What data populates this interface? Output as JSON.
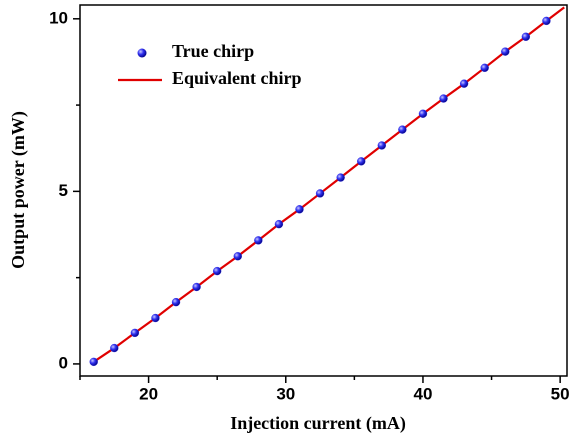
{
  "chart_data": {
    "type": "scatter",
    "xlabel": "Injection current (mA)",
    "ylabel": "Output power (mW)",
    "xlim": [
      15,
      50.5
    ],
    "ylim": [
      -0.35,
      10.4
    ],
    "xticks": [
      20,
      30,
      40,
      50
    ],
    "yticks": [
      0,
      5,
      10
    ],
    "xminorticks": [
      15,
      25,
      35,
      45
    ],
    "yminorticks": [
      2.5,
      7.5
    ],
    "legend": "upper left",
    "series": [
      {
        "name": "True chirp",
        "type": "scatter",
        "color": "#2020e0",
        "x": [
          16,
          17.5,
          19,
          20.5,
          22,
          23.5,
          25,
          26.5,
          28,
          29.5,
          31,
          32.5,
          34,
          35.5,
          37,
          38.5,
          40,
          41.5,
          43,
          44.5,
          46,
          47.5,
          49
        ],
        "values": [
          0.06,
          0.46,
          0.9,
          1.33,
          1.79,
          2.23,
          2.69,
          3.12,
          3.58,
          4.05,
          4.48,
          4.94,
          5.4,
          5.87,
          6.33,
          6.79,
          7.25,
          7.69,
          8.12,
          8.58,
          9.05,
          9.48,
          9.94
        ]
      },
      {
        "name": "Equivalent chirp",
        "type": "line",
        "color": "#e00000",
        "x": [
          16,
          17.5,
          19,
          20.5,
          22,
          23.5,
          25,
          26.5,
          28,
          29.5,
          31,
          32.5,
          34,
          35.5,
          37,
          38.5,
          40,
          41.5,
          43,
          44.5,
          46,
          47.5,
          49,
          50.3
        ],
        "values": [
          0.06,
          0.46,
          0.9,
          1.33,
          1.79,
          2.23,
          2.69,
          3.12,
          3.58,
          4.05,
          4.48,
          4.94,
          5.4,
          5.87,
          6.33,
          6.79,
          7.25,
          7.69,
          8.12,
          8.58,
          9.05,
          9.48,
          9.94,
          10.33
        ]
      }
    ]
  }
}
